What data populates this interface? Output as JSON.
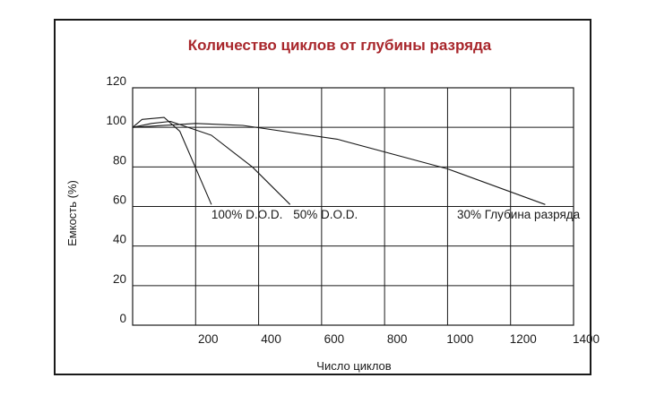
{
  "chart_data": {
    "type": "line",
    "title": "Количество циклов от глубины разряда",
    "xlabel": "Число циклов",
    "ylabel": "Емкость (%)",
    "xlim": [
      0,
      1400
    ],
    "ylim": [
      0,
      120
    ],
    "x_ticks": [
      {
        "value": 200,
        "label": "200"
      },
      {
        "value": 400,
        "label": "400"
      },
      {
        "value": 600,
        "label": "600"
      },
      {
        "value": 800,
        "label": "800"
      },
      {
        "value": 1000,
        "label": "1000"
      },
      {
        "value": 1200,
        "label": "1200"
      },
      {
        "value": 1400,
        "label": "1400"
      }
    ],
    "y_ticks": [
      {
        "value": 0,
        "label": "0"
      },
      {
        "value": 20,
        "label": "20"
      },
      {
        "value": 40,
        "label": "40"
      },
      {
        "value": 60,
        "label": "60"
      },
      {
        "value": 80,
        "label": "80"
      },
      {
        "value": 100,
        "label": "100"
      },
      {
        "value": 120,
        "label": "120"
      }
    ],
    "grid": true,
    "colors": {
      "title": "#a8262b",
      "ink": "#1a1a1a"
    },
    "series": [
      {
        "name": "100% D.O.D.",
        "points": [
          [
            0,
            100
          ],
          [
            30,
            104
          ],
          [
            100,
            105
          ],
          [
            150,
            98
          ],
          [
            250,
            61
          ]
        ],
        "label_at": [
          250,
          54
        ]
      },
      {
        "name": "50% D.O.D.",
        "points": [
          [
            0,
            100
          ],
          [
            60,
            102
          ],
          [
            120,
            103
          ],
          [
            250,
            96
          ],
          [
            380,
            80
          ],
          [
            500,
            61
          ]
        ],
        "label_at": [
          510,
          54
        ]
      },
      {
        "name": "30% Глубина разряда",
        "points": [
          [
            0,
            100
          ],
          [
            200,
            102
          ],
          [
            350,
            101
          ],
          [
            650,
            94
          ],
          [
            1000,
            79
          ],
          [
            1310,
            61
          ]
        ],
        "label_at": [
          1030,
          54
        ]
      }
    ]
  }
}
